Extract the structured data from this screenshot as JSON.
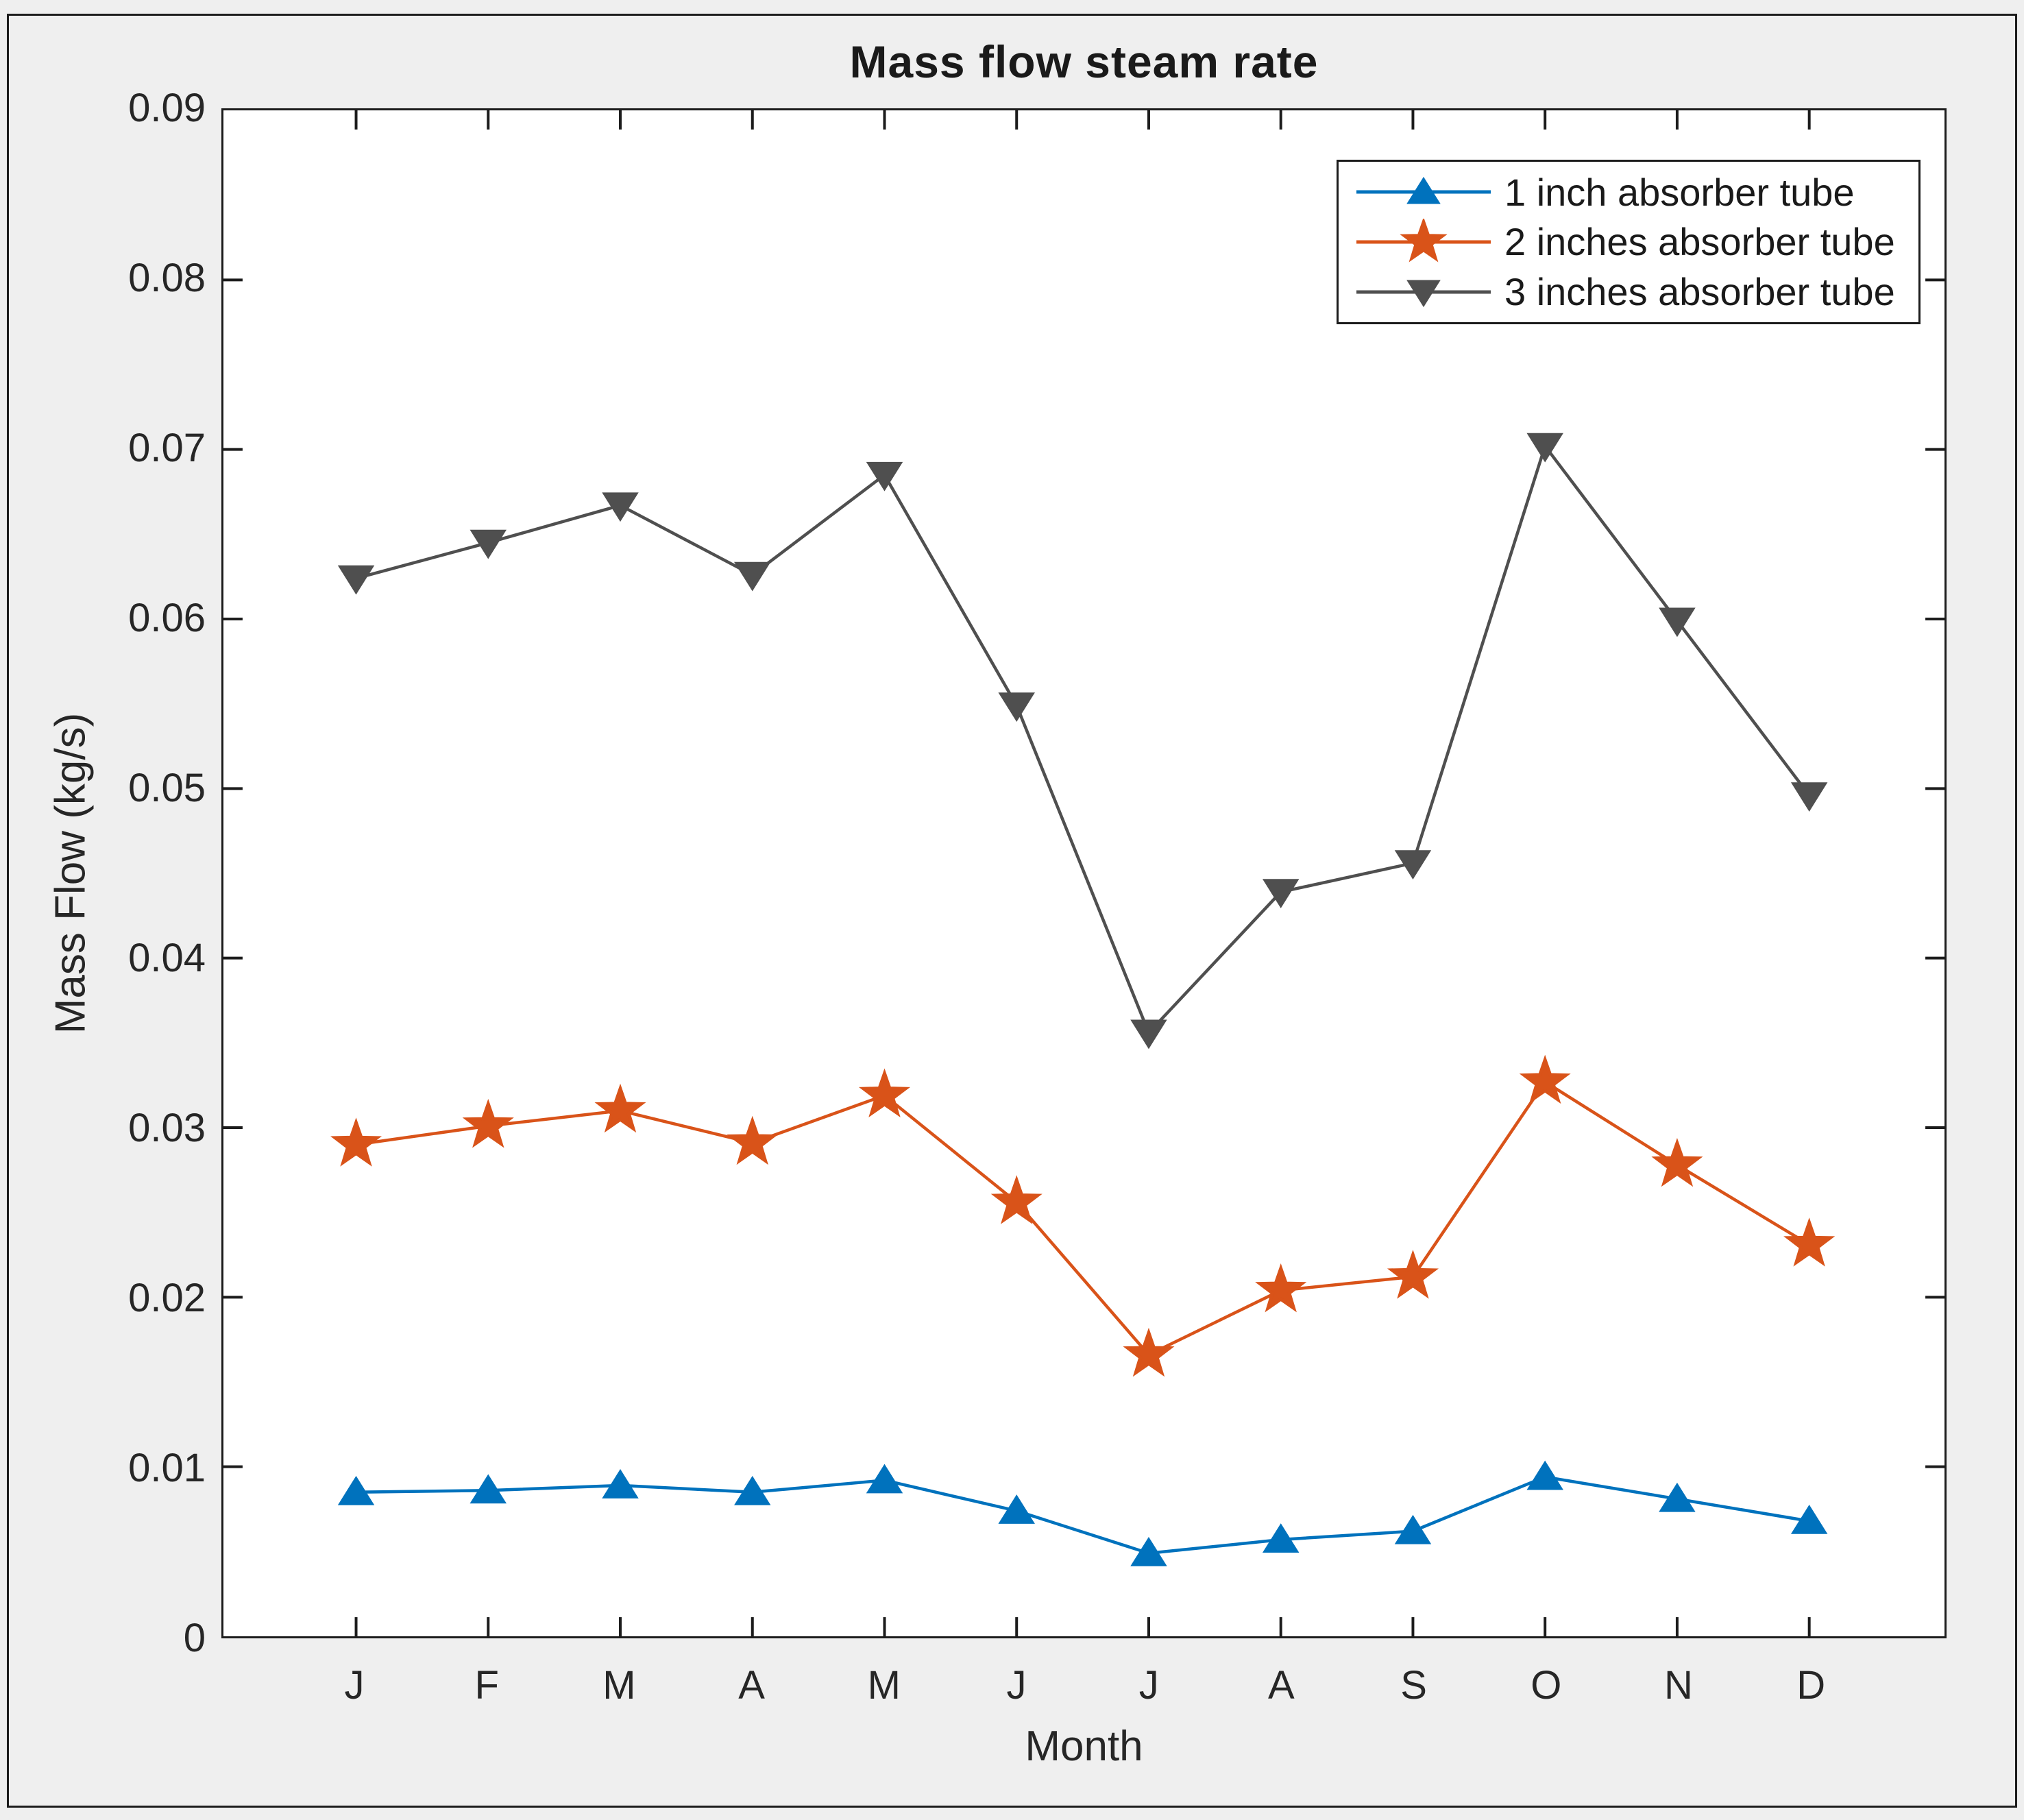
{
  "figure": {
    "background_color": "#efefef",
    "plot_background_color": "#ffffff",
    "axis_color": "#1c1c1c",
    "text_color": "#262626"
  },
  "chart_data": {
    "type": "line",
    "title": "Mass flow steam rate",
    "xlabel": "Month",
    "ylabel": "Mass Flow (kg/s)",
    "categories": [
      "J",
      "F",
      "M",
      "A",
      "M",
      "J",
      "J",
      "A",
      "S",
      "O",
      "N",
      "D"
    ],
    "y_ticks": [
      "0",
      "0.01",
      "0.02",
      "0.03",
      "0.04",
      "0.05",
      "0.06",
      "0.07",
      "0.08",
      "0.09"
    ],
    "ylim": [
      0,
      0.09
    ],
    "grid": false,
    "legend_position": "top-right",
    "series": [
      {
        "name": "1 inch absorber tube",
        "color": "#0072BD",
        "marker": "triangle-up",
        "values": [
          0.0085,
          0.0086,
          0.0089,
          0.0085,
          0.0092,
          0.0074,
          0.0049,
          0.0057,
          0.0062,
          0.0094,
          0.0081,
          0.0068
        ]
      },
      {
        "name": "2 inches absorber tube",
        "color": "#D95319",
        "marker": "star",
        "values": [
          0.029,
          0.0301,
          0.031,
          0.0291,
          0.0319,
          0.0256,
          0.0166,
          0.0204,
          0.0212,
          0.0327,
          0.0278,
          0.0231
        ]
      },
      {
        "name": "3 inches absorber tube",
        "color": "#4F4F4F",
        "marker": "triangle-down",
        "values": [
          0.0624,
          0.0645,
          0.0667,
          0.0626,
          0.0685,
          0.0549,
          0.0356,
          0.0439,
          0.0456,
          0.0702,
          0.0599,
          0.0496
        ]
      }
    ]
  }
}
